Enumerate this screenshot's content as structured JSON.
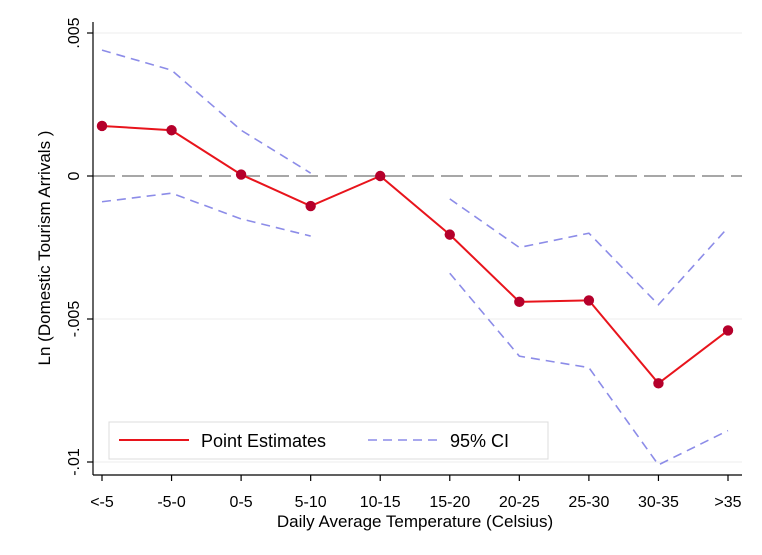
{
  "chart_data": {
    "type": "line",
    "title": "",
    "xlabel": "Daily Average Temperature (Celsius)",
    "ylabel": "Ln (Domestic Tourism Arrivals )",
    "categories": [
      "<-5",
      "-5-0",
      "0-5",
      "5-10",
      "10-15",
      "15-20",
      "20-25",
      "25-30",
      "30-35",
      ">35"
    ],
    "ylim": [
      -0.0102,
      0.0054
    ],
    "yticks": [
      0.005,
      0,
      -0.005,
      -0.01
    ],
    "ytick_labels": [
      ".005",
      "0",
      "-.005",
      "-.01"
    ],
    "reference_line": 0,
    "series": [
      {
        "name": "Point Estimates",
        "style": "solid-markers",
        "color": "#e8141c",
        "values": [
          0.00175,
          0.0016,
          5e-05,
          -0.00105,
          0.0,
          -0.00205,
          -0.0044,
          -0.00435,
          -0.00725,
          -0.0054
        ]
      },
      {
        "name": "95% CI (upper)",
        "style": "dashed",
        "color": "#8c8ce8",
        "values": [
          0.0044,
          0.0037,
          0.0016,
          0.0001,
          null,
          -0.0008,
          -0.0025,
          -0.002,
          -0.0045,
          -0.0018
        ]
      },
      {
        "name": "95% CI (lower)",
        "style": "dashed",
        "color": "#8c8ce8",
        "values": [
          -0.0009,
          -0.0006,
          -0.0015,
          -0.0021,
          null,
          -0.0034,
          -0.0063,
          -0.0067,
          -0.0101,
          -0.0089
        ]
      }
    ],
    "legend": {
      "position": "bottom-left",
      "entries": [
        {
          "label": "Point Estimates",
          "style": "solid",
          "color": "#e8141c"
        },
        {
          "label": "95% CI",
          "style": "dashed",
          "color": "#8c8ce8"
        }
      ]
    },
    "grid": true
  }
}
